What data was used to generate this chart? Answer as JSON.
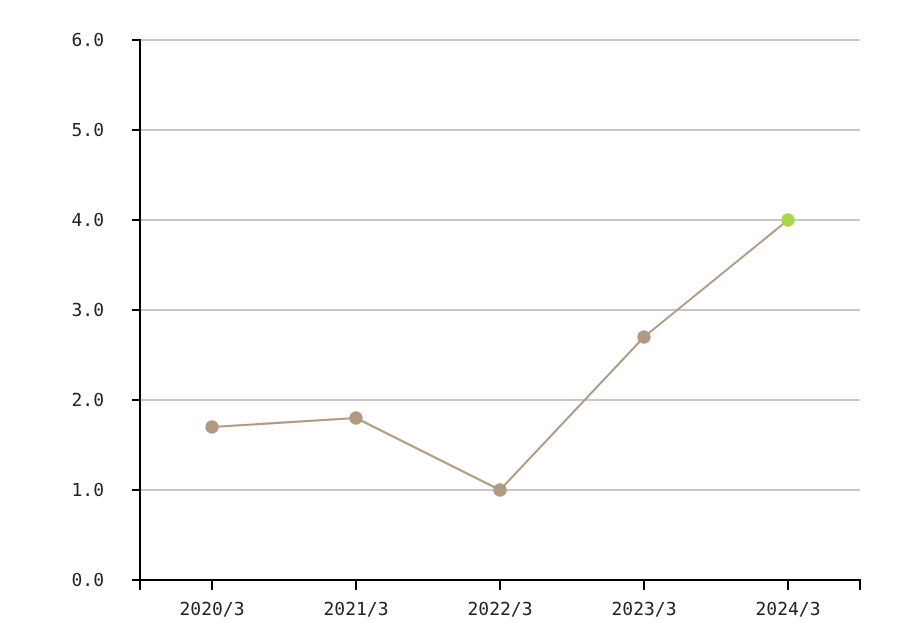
{
  "chart_data": {
    "type": "line",
    "categories": [
      "2020/3",
      "2021/3",
      "2022/3",
      "2023/3",
      "2024/3"
    ],
    "series": [
      {
        "color": "#b09a80",
        "colors": [
          "#b09a80",
          "#b09a80",
          "#b09a80",
          "#b09a80",
          "#a8d84a"
        ],
        "values": [
          1.7,
          1.8,
          1.0,
          2.7,
          4.0
        ]
      }
    ],
    "ylim": [
      0,
      6
    ],
    "yticks": [
      {
        "value": 0,
        "label": "0.0"
      },
      {
        "value": 1,
        "label": "1.0"
      },
      {
        "value": 2,
        "label": "2.0"
      },
      {
        "value": 3,
        "label": "3.0"
      },
      {
        "value": 4,
        "label": "4.0"
      },
      {
        "value": 5,
        "label": "5.0"
      },
      {
        "value": 6,
        "label": "6.0"
      }
    ],
    "grid": "y",
    "marker": "circle",
    "line_style": "solid"
  }
}
